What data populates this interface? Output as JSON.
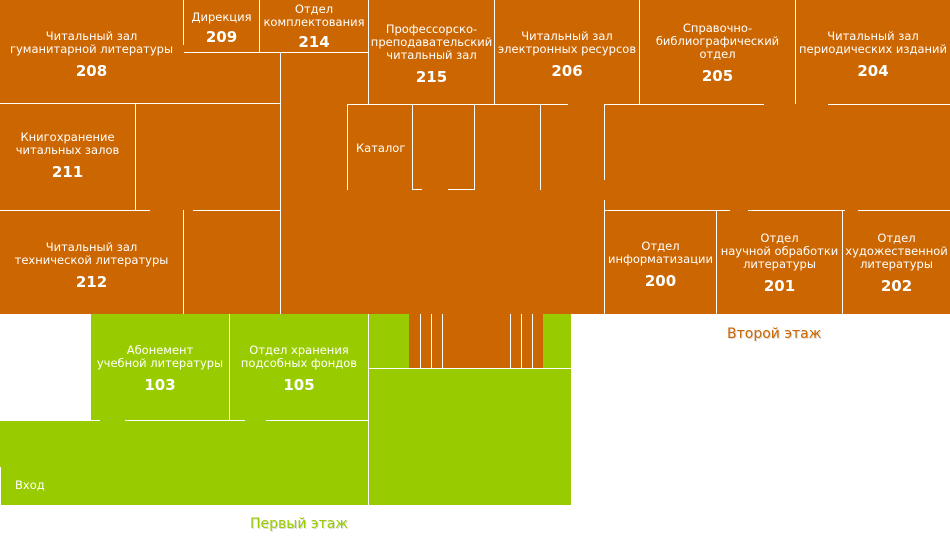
{
  "floors": {
    "second": {
      "caption": "Второй этаж",
      "color": "#cc6600"
    },
    "first": {
      "caption": "Первый этаж",
      "color": "#99cc00"
    }
  },
  "rooms": {
    "r208": {
      "name": "Читальный зал\nгуманитарной литературы",
      "number": "208"
    },
    "r209": {
      "name": "Дирекция",
      "number": "209"
    },
    "r214": {
      "name": "Отдел\nкомплектования",
      "number": "214"
    },
    "r215": {
      "name": "Профессорско-\nпреподавательский\nчитальный зал",
      "number": "215"
    },
    "r206": {
      "name": "Читальный зал\nэлектронных ресурсов",
      "number": "206"
    },
    "r205": {
      "name": "Справочно-\nбиблиографический\nотдел",
      "number": "205"
    },
    "r204": {
      "name": "Читальный зал\nпериодических изданий",
      "number": "204"
    },
    "r211": {
      "name": "Книгохранение\nчитальных залов",
      "number": "211"
    },
    "r212": {
      "name": "Читальный зал\nтехнической литературы",
      "number": "212"
    },
    "r200": {
      "name": "Отдел\nинформатизации",
      "number": "200"
    },
    "r201": {
      "name": "Отдел\nнаучной обработки\nлитературы",
      "number": "201"
    },
    "r202": {
      "name": "Отдел\nхудожественной\nлитературы",
      "number": "202"
    },
    "r103": {
      "name": "Абонемент\nучебной литературы",
      "number": "103"
    },
    "r105": {
      "name": "Отдел хранения\nподсобных фондов",
      "number": "105"
    }
  },
  "labels": {
    "catalog": "Каталог",
    "entrance": "Вход"
  }
}
